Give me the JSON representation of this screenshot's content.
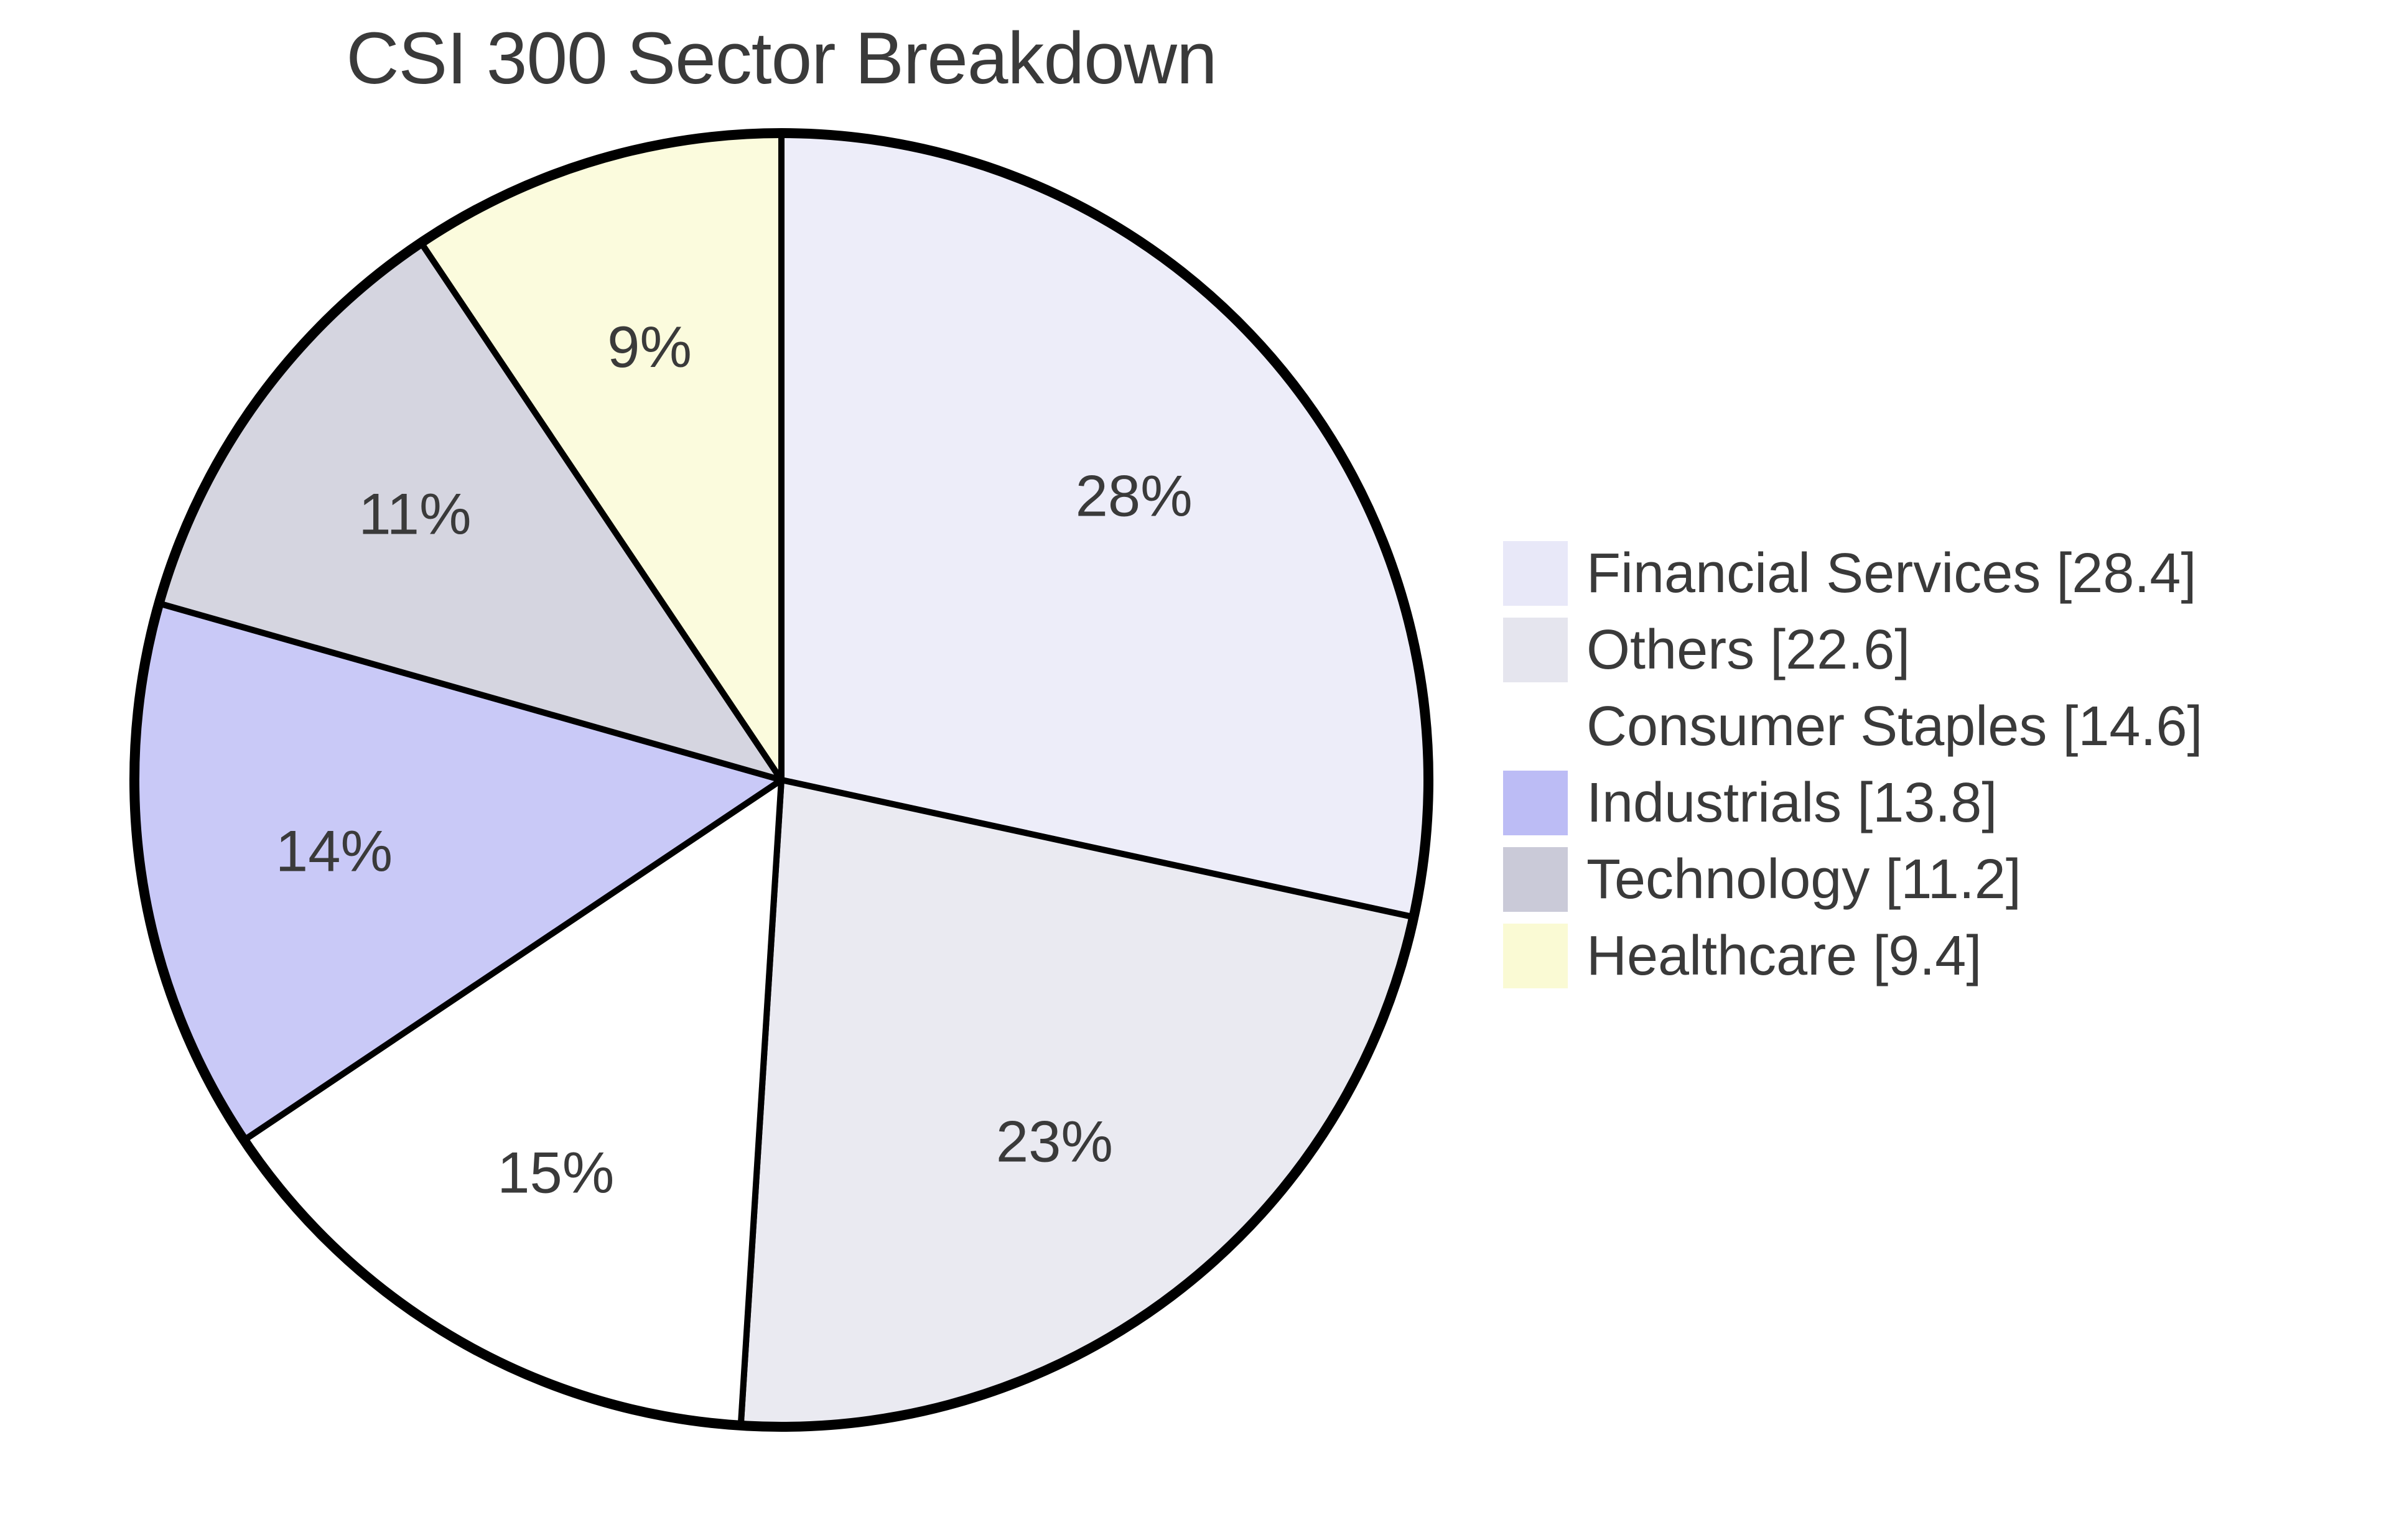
{
  "title": "CSI 300 Sector Breakdown",
  "chart_data": {
    "type": "pie",
    "title": "CSI 300 Sector Breakdown",
    "start_angle": "top",
    "direction": "clockwise",
    "background": "#FFFFFF",
    "edge_color": "#000000",
    "text_color": "#3A3A3A",
    "legend_position": "right",
    "series": [
      {
        "label": "Financial Services",
        "value": 28.4,
        "pct_label": "28%",
        "color": "#E8E8F8",
        "legend_label": "Financial Services [28.4]"
      },
      {
        "label": "Others",
        "value": 22.6,
        "pct_label": "23%",
        "color": "#E5E5EE",
        "legend_label": "Others [22.6]"
      },
      {
        "label": "Consumer Staples",
        "value": 14.6,
        "pct_label": "15%",
        "color": "#FFFFFF",
        "legend_label": "Consumer Staples [14.6]"
      },
      {
        "label": "Industrials",
        "value": 13.8,
        "pct_label": "14%",
        "color": "#BCBCF5",
        "legend_label": "Industrials [13.8]"
      },
      {
        "label": "Technology",
        "value": 11.2,
        "pct_label": "11%",
        "color": "#CACAD8",
        "legend_label": "Technology [11.2]"
      },
      {
        "label": "Healthcare",
        "value": 9.4,
        "pct_label": "9%",
        "color": "#FAFAD4",
        "legend_label": "Healthcare [9.4]"
      }
    ]
  }
}
